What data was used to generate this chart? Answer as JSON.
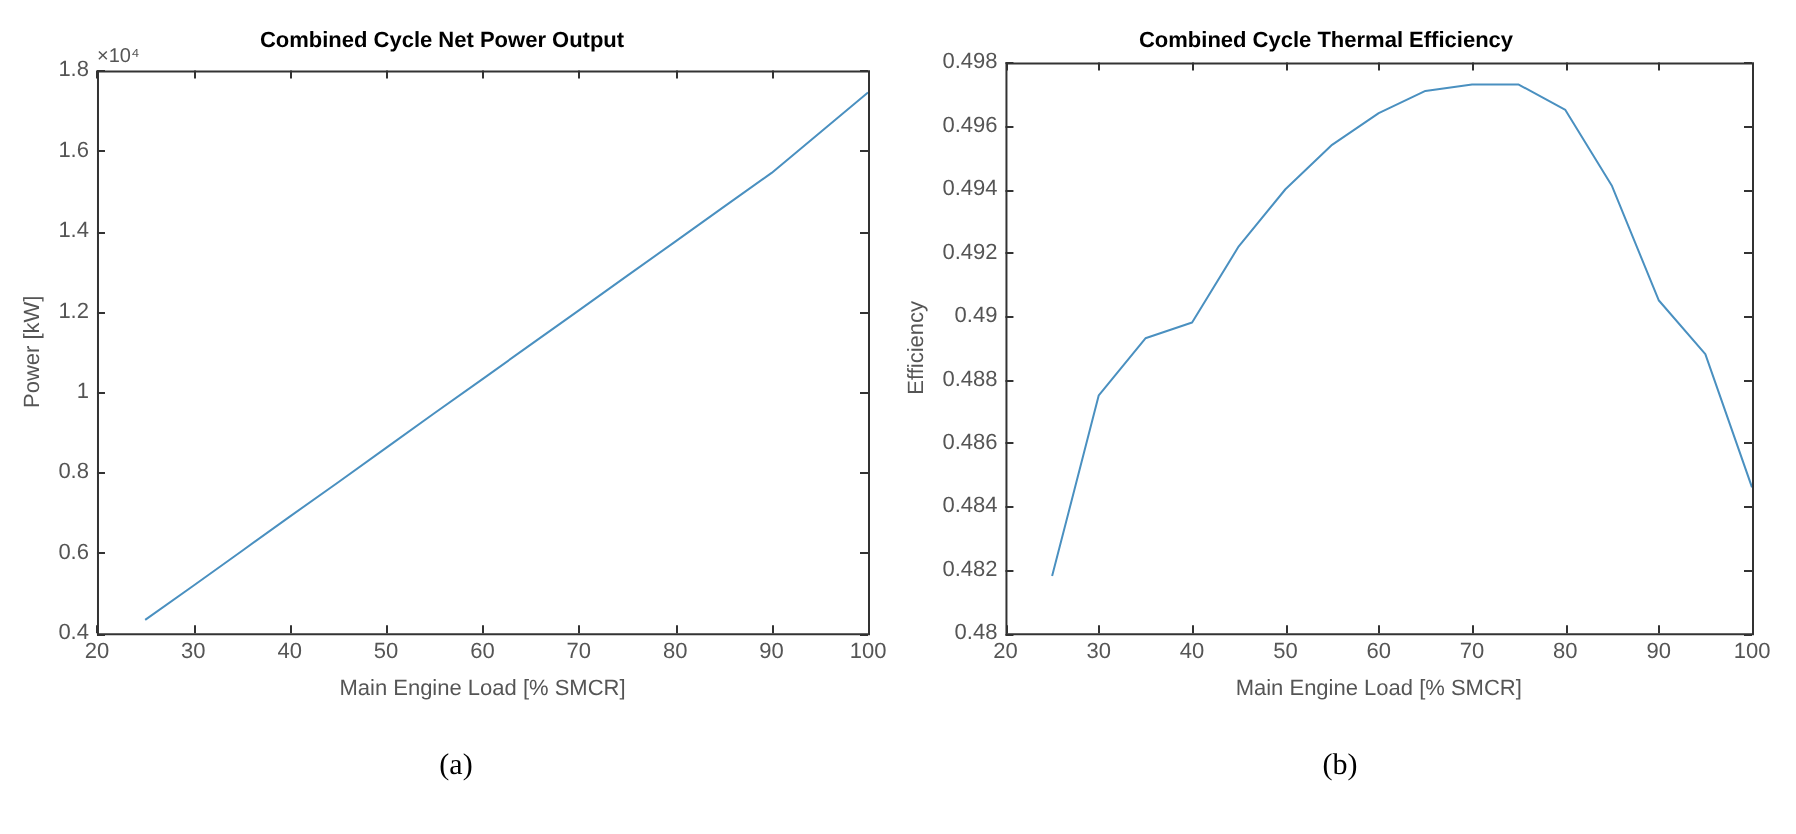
{
  "chart_data": [
    {
      "type": "line",
      "title": "Combined Cycle Net Power Output",
      "xlabel": "Main Engine Load [% SMCR]",
      "ylabel": "Power [kW]",
      "annotations": [
        "×10⁴",
        "(a)"
      ],
      "x": [
        25,
        30,
        35,
        40,
        45,
        50,
        55,
        60,
        65,
        70,
        75,
        80,
        85,
        90,
        95,
        100
      ],
      "series": [
        {
          "color": "#4a90c0",
          "values": [
            0.433,
            0.518,
            0.604,
            0.69,
            0.775,
            0.861,
            0.947,
            1.032,
            1.118,
            1.203,
            1.289,
            1.374,
            1.46,
            1.545,
            1.645,
            1.745
          ]
        }
      ],
      "xlim": [
        20,
        100
      ],
      "xticks": [
        20,
        30,
        40,
        50,
        60,
        70,
        80,
        90,
        100
      ],
      "ylim": [
        0.4,
        1.8
      ],
      "yticks": [
        0.4,
        0.6,
        0.8,
        1,
        1.2,
        1.4,
        1.6,
        1.8
      ],
      "grid": false,
      "legend": false,
      "marker": "none",
      "line_style": "solid"
    },
    {
      "type": "line",
      "title": "Combined Cycle Thermal Efficiency",
      "xlabel": "Main Engine Load [% SMCR]",
      "ylabel": "Efficiency",
      "annotations": [
        "(b)"
      ],
      "x": [
        25,
        30,
        35,
        40,
        45,
        50,
        55,
        60,
        65,
        70,
        75,
        80,
        85,
        90,
        95,
        100
      ],
      "series": [
        {
          "color": "#4a90c0",
          "values": [
            0.4818,
            0.4875,
            0.4893,
            0.4898,
            0.4922,
            0.494,
            0.4954,
            0.4964,
            0.4971,
            0.4973,
            0.4973,
            0.4965,
            0.4941,
            0.4905,
            0.4888,
            0.4846
          ]
        }
      ],
      "xlim": [
        20,
        100
      ],
      "xticks": [
        20,
        30,
        40,
        50,
        60,
        70,
        80,
        90,
        100
      ],
      "ylim": [
        0.48,
        0.498
      ],
      "yticks": [
        0.48,
        0.482,
        0.484,
        0.486,
        0.488,
        0.49,
        0.492,
        0.494,
        0.496,
        0.498
      ],
      "grid": false,
      "legend": false,
      "marker": "none",
      "line_style": "solid"
    }
  ]
}
